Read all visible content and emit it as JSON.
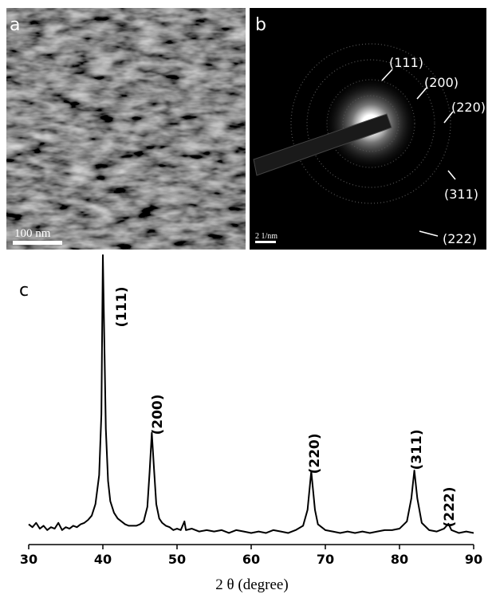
{
  "panels": {
    "a": {
      "label": "a",
      "scale_bar": "100 nm"
    },
    "b": {
      "label": "b",
      "scale_bar": "2 1/nm",
      "rings": [
        "(111)",
        "(200)",
        "(220)",
        "(311)",
        "(222)"
      ]
    },
    "c": {
      "label": "c"
    }
  },
  "chart_data": {
    "type": "line",
    "x_label": "2 θ (degree)",
    "color": "#000000",
    "x": [
      30,
      30.5,
      31,
      31.5,
      32,
      32.5,
      33,
      33.5,
      34,
      34.5,
      35,
      35.5,
      36,
      36.5,
      37,
      37.5,
      38,
      38.5,
      39,
      39.5,
      39.8,
      40,
      40.2,
      40.4,
      40.7,
      41,
      41.5,
      42,
      42.5,
      43,
      43.5,
      44,
      44.5,
      45,
      45.5,
      46,
      46.3,
      46.6,
      46.9,
      47.2,
      47.6,
      48,
      48.5,
      49,
      49.5,
      50,
      50.5,
      51,
      51.2,
      52,
      53,
      54,
      55,
      56,
      57,
      58,
      59,
      60,
      61,
      62,
      63,
      64,
      65,
      66,
      67,
      67.6,
      68.1,
      68.6,
      69,
      70,
      71,
      72,
      73,
      74,
      75,
      76,
      77,
      78,
      79,
      80,
      81,
      81.6,
      82,
      82.4,
      83,
      84,
      85,
      86,
      86.6,
      87,
      88,
      89,
      90
    ],
    "values": [
      7,
      6,
      7.5,
      5.5,
      6.5,
      5,
      6,
      5.5,
      7.5,
      5,
      6,
      5.5,
      6.5,
      6,
      7,
      7.5,
      8.5,
      10,
      14,
      24,
      45,
      100,
      70,
      40,
      22,
      15,
      11,
      9,
      8,
      7,
      6.5,
      6.5,
      6.5,
      7,
      8,
      13,
      25,
      38.6,
      26,
      14,
      9,
      7.5,
      6.5,
      6,
      5,
      5.5,
      5,
      8,
      5,
      5.5,
      4.5,
      5,
      4.5,
      5,
      4,
      5,
      4.5,
      4,
      4.5,
      4,
      5,
      4.5,
      4,
      5,
      6.5,
      12,
      25.3,
      12,
      7,
      5,
      4.5,
      4,
      4.5,
      4,
      4.5,
      4,
      4.5,
      5,
      5,
      5.5,
      8,
      16,
      25.6,
      16,
      7.5,
      5,
      4.5,
      5.5,
      7.2,
      5,
      4,
      4.5,
      4
    ],
    "xlim": [
      30,
      90
    ],
    "ylim": [
      0,
      100
    ],
    "xticks": [
      30,
      40,
      50,
      60,
      70,
      80,
      90
    ],
    "annotations": [
      "(111)",
      "(200)",
      "(220)",
      "(311)",
      "(222)"
    ]
  }
}
